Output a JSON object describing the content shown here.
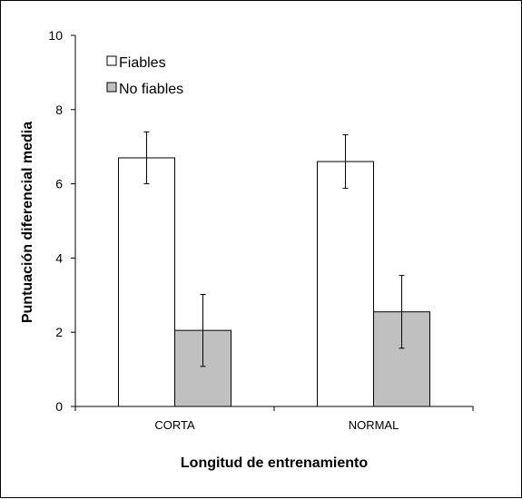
{
  "chart_data": {
    "type": "bar",
    "title": "",
    "xlabel": "Longitud de entrenamiento",
    "ylabel": "Puntuación diferencial media",
    "categories": [
      "CORTA",
      "NORMAL"
    ],
    "ylim": [
      0,
      10
    ],
    "yticks": [
      "0",
      "2",
      "4",
      "6",
      "8",
      "10"
    ],
    "grid": false,
    "legend_position": "top-left",
    "series": [
      {
        "name": "Fiables",
        "color": "#ffffff",
        "values": [
          6.7,
          6.6
        ],
        "errors": [
          0.7,
          0.72
        ]
      },
      {
        "name": "No fiables",
        "color": "#c0c0c0",
        "values": [
          2.05,
          2.55
        ],
        "errors": [
          0.97,
          0.98
        ]
      }
    ]
  }
}
